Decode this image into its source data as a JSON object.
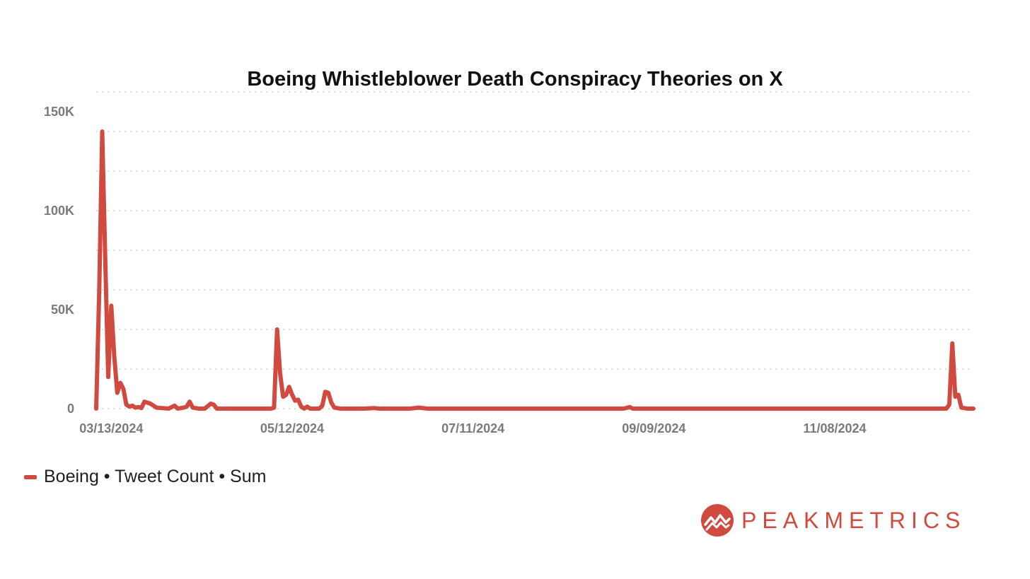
{
  "colors": {
    "series": "#d04a40",
    "grid": "#dddddd",
    "axis_text": "#7a7a7a"
  },
  "chart_data": {
    "type": "line",
    "title": "Boeing Whistleblower Death Conspiracy Theories on X",
    "xlabel": "",
    "ylabel": "",
    "x_ticks": [
      "03/13/2024",
      "05/12/2024",
      "07/11/2024",
      "09/09/2024",
      "11/08/2024"
    ],
    "y_ticks": [
      "0",
      "50K",
      "100K",
      "150K"
    ],
    "ylim": [
      0,
      160000
    ],
    "xlim": [
      "2024-03-08",
      "2024-12-24"
    ],
    "grid": "horizontal dotted",
    "legend_position": "bottom-left",
    "series": [
      {
        "name": "Boeing • Tweet Count • Sum",
        "points": [
          [
            "2024-03-08",
            0
          ],
          [
            "2024-03-09",
            60000
          ],
          [
            "2024-03-10",
            140000
          ],
          [
            "2024-03-11",
            75000
          ],
          [
            "2024-03-12",
            16000
          ],
          [
            "2024-03-13",
            52000
          ],
          [
            "2024-03-14",
            26000
          ],
          [
            "2024-03-15",
            8000
          ],
          [
            "2024-03-16",
            13000
          ],
          [
            "2024-03-17",
            10000
          ],
          [
            "2024-03-18",
            2000
          ],
          [
            "2024-03-19",
            1000
          ],
          [
            "2024-03-20",
            1500
          ],
          [
            "2024-03-21",
            500
          ],
          [
            "2024-03-22",
            800
          ],
          [
            "2024-03-23",
            300
          ],
          [
            "2024-03-24",
            3500
          ],
          [
            "2024-03-26",
            2500
          ],
          [
            "2024-03-28",
            500
          ],
          [
            "2024-04-01",
            0
          ],
          [
            "2024-04-03",
            1500
          ],
          [
            "2024-04-04",
            0
          ],
          [
            "2024-04-06",
            500
          ],
          [
            "2024-04-07",
            1000
          ],
          [
            "2024-04-08",
            3500
          ],
          [
            "2024-04-09",
            500
          ],
          [
            "2024-04-11",
            0
          ],
          [
            "2024-04-13",
            0
          ],
          [
            "2024-04-15",
            2500
          ],
          [
            "2024-04-16",
            2000
          ],
          [
            "2024-04-17",
            0
          ],
          [
            "2024-04-20",
            0
          ],
          [
            "2024-04-25",
            0
          ],
          [
            "2024-04-30",
            0
          ],
          [
            "2024-05-05",
            0
          ],
          [
            "2024-05-06",
            500
          ],
          [
            "2024-05-07",
            40000
          ],
          [
            "2024-05-08",
            18000
          ],
          [
            "2024-05-09",
            6000
          ],
          [
            "2024-05-10",
            7000
          ],
          [
            "2024-05-11",
            11000
          ],
          [
            "2024-05-12",
            7000
          ],
          [
            "2024-05-13",
            4000
          ],
          [
            "2024-05-14",
            4500
          ],
          [
            "2024-05-15",
            1000
          ],
          [
            "2024-05-16",
            0
          ],
          [
            "2024-05-17",
            1000
          ],
          [
            "2024-05-18",
            0
          ],
          [
            "2024-05-21",
            0
          ],
          [
            "2024-05-22",
            1500
          ],
          [
            "2024-05-23",
            8500
          ],
          [
            "2024-05-24",
            8000
          ],
          [
            "2024-05-25",
            3000
          ],
          [
            "2024-05-26",
            500
          ],
          [
            "2024-05-28",
            0
          ],
          [
            "2024-06-01",
            0
          ],
          [
            "2024-06-05",
            0
          ],
          [
            "2024-06-08",
            300
          ],
          [
            "2024-06-10",
            0
          ],
          [
            "2024-06-20",
            0
          ],
          [
            "2024-06-23",
            500
          ],
          [
            "2024-06-26",
            0
          ],
          [
            "2024-07-01",
            0
          ],
          [
            "2024-07-10",
            0
          ],
          [
            "2024-07-20",
            0
          ],
          [
            "2024-08-01",
            0
          ],
          [
            "2024-08-15",
            0
          ],
          [
            "2024-08-25",
            0
          ],
          [
            "2024-08-30",
            0
          ],
          [
            "2024-09-01",
            800
          ],
          [
            "2024-09-02",
            0
          ],
          [
            "2024-09-15",
            0
          ],
          [
            "2024-10-01",
            0
          ],
          [
            "2024-10-20",
            0
          ],
          [
            "2024-11-10",
            0
          ],
          [
            "2024-11-25",
            0
          ],
          [
            "2024-12-10",
            0
          ],
          [
            "2024-12-15",
            0
          ],
          [
            "2024-12-16",
            2000
          ],
          [
            "2024-12-17",
            33000
          ],
          [
            "2024-12-18",
            6000
          ],
          [
            "2024-12-19",
            7000
          ],
          [
            "2024-12-20",
            500
          ],
          [
            "2024-12-22",
            0
          ],
          [
            "2024-12-24",
            0
          ]
        ]
      }
    ]
  },
  "legend": {
    "label": "Boeing • Tweet Count • Sum"
  },
  "logo": {
    "text": "PEAKMETRICS"
  }
}
